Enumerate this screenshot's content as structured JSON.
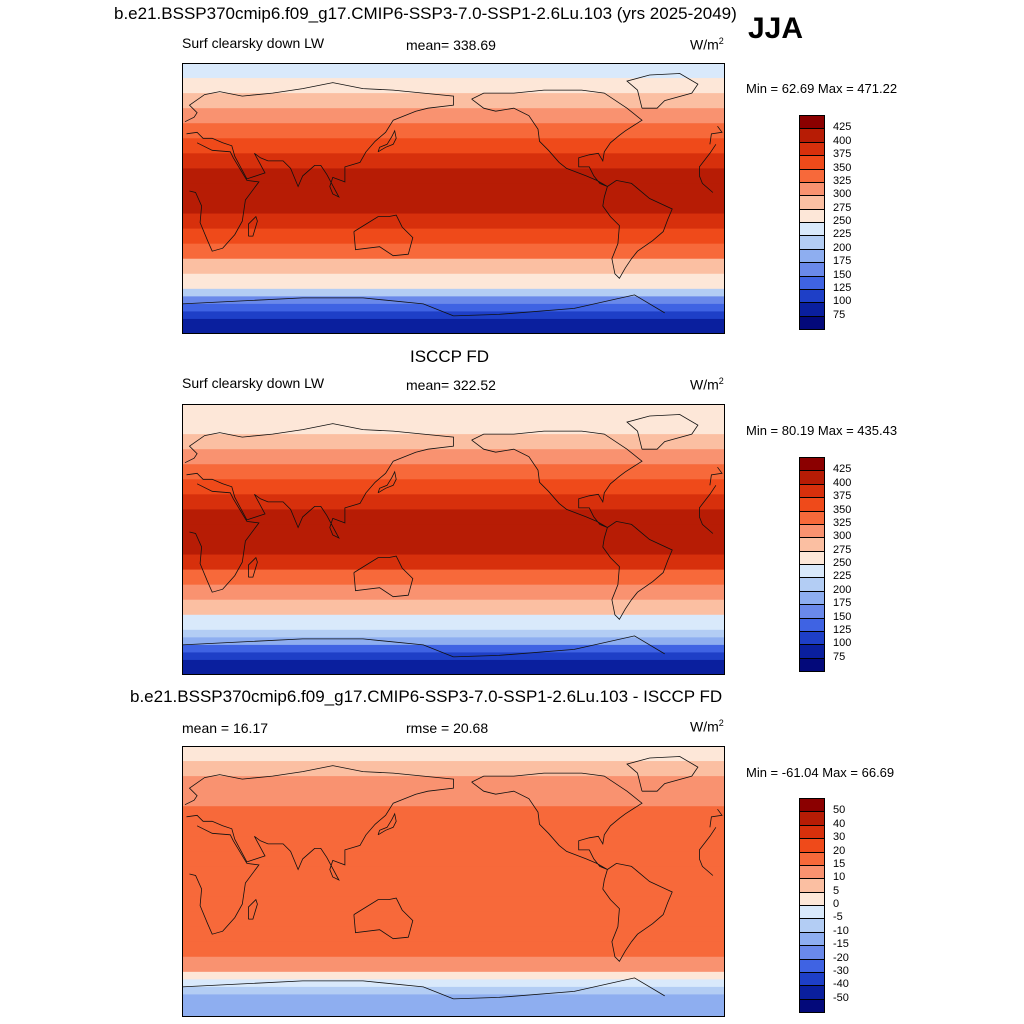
{
  "page": {
    "season": "JJA",
    "unit_base": "W/m",
    "unit_exp": "2"
  },
  "chart_data": [
    {
      "type": "heatmap",
      "title": "b.e21.BSSP370cmip6.f09_g17.CMIP6-SSP3-7.0-SSP1-2.6Lu.103 (yrs 2025-2049)",
      "variable": "Surf clearsky down LW",
      "mean_text": "mean= 338.69",
      "minmax_text": "Min =  62.69 Max = 471.22",
      "min": 62.69,
      "max": 471.22,
      "mean": 338.69,
      "levels": [
        "425",
        "400",
        "375",
        "350",
        "325",
        "300",
        "275",
        "250",
        "225",
        "200",
        "175",
        "150",
        "125",
        "100",
        "75"
      ],
      "colors": [
        "#8b0000",
        "#b71c05",
        "#d7300c",
        "#ef4a1a",
        "#f7693a",
        "#f99270",
        "#fbbfa2",
        "#fde7d8",
        "#d9e9fb",
        "#b3cdf4",
        "#8eaef0",
        "#6a89ea",
        "#3f63e3",
        "#1e3fc7",
        "#0a1f9e",
        "#03097a"
      ],
      "bands": [
        {
          "lat": 90,
          "value": 240
        },
        {
          "lat": 80,
          "value": 250
        },
        {
          "lat": 70,
          "value": 285
        },
        {
          "lat": 60,
          "value": 305
        },
        {
          "lat": 50,
          "value": 320
        },
        {
          "lat": 40,
          "value": 345
        },
        {
          "lat": 30,
          "value": 380
        },
        {
          "lat": 20,
          "value": 405
        },
        {
          "lat": 10,
          "value": 420
        },
        {
          "lat": 0,
          "value": 420
        },
        {
          "lat": -10,
          "value": 400
        },
        {
          "lat": -20,
          "value": 375
        },
        {
          "lat": -30,
          "value": 345
        },
        {
          "lat": -40,
          "value": 315
        },
        {
          "lat": -50,
          "value": 275
        },
        {
          "lat": -60,
          "value": 235
        },
        {
          "lat": -65,
          "value": 190
        },
        {
          "lat": -70,
          "value": 150
        },
        {
          "lat": -75,
          "value": 110
        },
        {
          "lat": -80,
          "value": 90
        },
        {
          "lat": -90,
          "value": 75
        }
      ]
    },
    {
      "type": "heatmap",
      "title": "ISCCP FD",
      "variable": "Surf clearsky down LW",
      "mean_text": "mean= 322.52",
      "minmax_text": "Min =  80.19 Max = 435.43",
      "min": 80.19,
      "max": 435.43,
      "mean": 322.52,
      "levels": [
        "425",
        "400",
        "375",
        "350",
        "325",
        "300",
        "275",
        "250",
        "225",
        "200",
        "175",
        "150",
        "125",
        "100",
        "75"
      ],
      "colors": [
        "#8b0000",
        "#b71c05",
        "#d7300c",
        "#ef4a1a",
        "#f7693a",
        "#f99270",
        "#fbbfa2",
        "#fde7d8",
        "#d9e9fb",
        "#b3cdf4",
        "#8eaef0",
        "#6a89ea",
        "#3f63e3",
        "#1e3fc7",
        "#0a1f9e",
        "#03097a"
      ],
      "bands": [
        {
          "lat": 90,
          "value": 245
        },
        {
          "lat": 80,
          "value": 255
        },
        {
          "lat": 70,
          "value": 280
        },
        {
          "lat": 60,
          "value": 300
        },
        {
          "lat": 50,
          "value": 315
        },
        {
          "lat": 40,
          "value": 340
        },
        {
          "lat": 30,
          "value": 370
        },
        {
          "lat": 20,
          "value": 395
        },
        {
          "lat": 10,
          "value": 410
        },
        {
          "lat": 0,
          "value": 410
        },
        {
          "lat": -10,
          "value": 390
        },
        {
          "lat": -20,
          "value": 360
        },
        {
          "lat": -30,
          "value": 330
        },
        {
          "lat": -40,
          "value": 300
        },
        {
          "lat": -50,
          "value": 265
        },
        {
          "lat": -60,
          "value": 230
        },
        {
          "lat": -65,
          "value": 200
        },
        {
          "lat": -70,
          "value": 165
        },
        {
          "lat": -75,
          "value": 130
        },
        {
          "lat": -80,
          "value": 105
        },
        {
          "lat": -90,
          "value": 85
        }
      ]
    },
    {
      "type": "heatmap",
      "title": "b.e21.BSSP370cmip6.f09_g17.CMIP6-SSP3-7.0-SSP1-2.6Lu.103 - ISCCP FD",
      "variable": "",
      "mean_text": "mean =  16.17",
      "rmse_text": "rmse =  20.68",
      "minmax_text": "Min = -61.04 Max =  66.69",
      "min": -61.04,
      "max": 66.69,
      "mean": 16.17,
      "rmse": 20.68,
      "levels": [
        "50",
        "40",
        "30",
        "20",
        "15",
        "10",
        "5",
        "0",
        "-5",
        "-10",
        "-15",
        "-20",
        "-30",
        "-40",
        "-50"
      ],
      "colors": [
        "#8b0000",
        "#b71c05",
        "#d7300c",
        "#ef4a1a",
        "#f7693a",
        "#f99270",
        "#fbbfa2",
        "#fde7d8",
        "#d9e9fb",
        "#b3cdf4",
        "#8eaef0",
        "#6a89ea",
        "#3f63e3",
        "#1e3fc7",
        "#0a1f9e",
        "#03097a"
      ],
      "bands": [
        {
          "lat": 90,
          "value": 2
        },
        {
          "lat": 80,
          "value": 6
        },
        {
          "lat": 70,
          "value": 8
        },
        {
          "lat": 60,
          "value": 12
        },
        {
          "lat": 50,
          "value": 17
        },
        {
          "lat": 40,
          "value": 18
        },
        {
          "lat": 30,
          "value": 16
        },
        {
          "lat": 20,
          "value": 17
        },
        {
          "lat": 10,
          "value": 16
        },
        {
          "lat": 0,
          "value": 17
        },
        {
          "lat": -10,
          "value": 16
        },
        {
          "lat": -20,
          "value": 18
        },
        {
          "lat": -30,
          "value": 19
        },
        {
          "lat": -40,
          "value": 18
        },
        {
          "lat": -50,
          "value": 14
        },
        {
          "lat": -60,
          "value": 6
        },
        {
          "lat": -65,
          "value": 2
        },
        {
          "lat": -70,
          "value": -6
        },
        {
          "lat": -75,
          "value": -12
        },
        {
          "lat": -80,
          "value": -10
        },
        {
          "lat": -90,
          "value": -14
        }
      ]
    }
  ]
}
